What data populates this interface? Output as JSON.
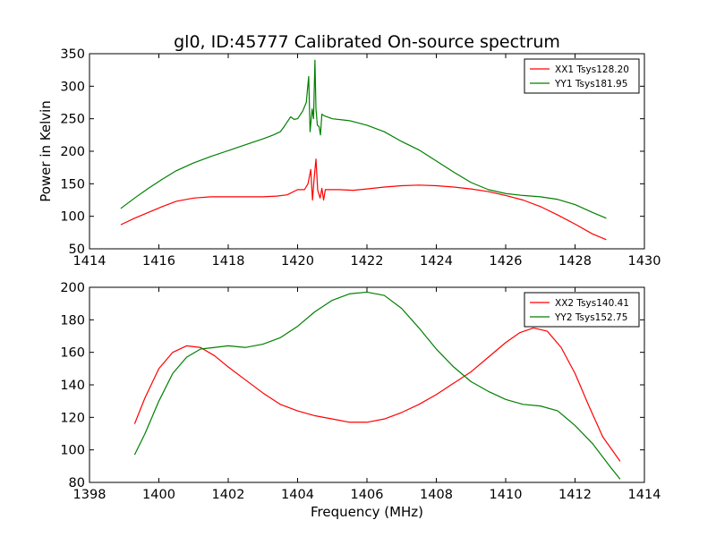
{
  "chart_data": [
    {
      "type": "line",
      "title": "gl0, ID:45777 Calibrated On-source spectrum",
      "xlabel": "",
      "ylabel": "Power in Kelvin",
      "xlim": [
        1414,
        1430
      ],
      "ylim": [
        50,
        350
      ],
      "xticks": [
        "1414",
        "1416",
        "1418",
        "1420",
        "1422",
        "1424",
        "1426",
        "1428",
        "1430"
      ],
      "yticks": [
        "50",
        "100",
        "150",
        "200",
        "250",
        "300",
        "350"
      ],
      "grid": false,
      "legend_position": "top-right",
      "series": [
        {
          "name": "XX1 Tsys128.20",
          "color": "#ff0000",
          "x": [
            1414.9,
            1415.3,
            1415.7,
            1416.1,
            1416.5,
            1417.0,
            1417.5,
            1418.0,
            1418.5,
            1419.0,
            1419.4,
            1419.7,
            1420.0,
            1420.2,
            1420.3,
            1420.38,
            1420.43,
            1420.48,
            1420.53,
            1420.58,
            1420.65,
            1420.7,
            1420.75,
            1420.8,
            1420.9,
            1421.2,
            1421.6,
            1422.0,
            1422.5,
            1423.0,
            1423.5,
            1424.0,
            1424.5,
            1425.0,
            1425.5,
            1426.0,
            1426.5,
            1427.0,
            1427.5,
            1428.0,
            1428.5,
            1428.9
          ],
          "y": [
            87,
            97,
            106,
            115,
            123,
            128,
            130,
            130,
            130,
            130,
            131,
            133,
            141,
            141,
            150,
            172,
            125,
            160,
            188,
            140,
            128,
            143,
            125,
            141,
            141,
            141,
            140,
            142,
            145,
            147,
            148,
            147,
            145,
            142,
            138,
            132,
            125,
            115,
            102,
            88,
            73,
            64
          ]
        },
        {
          "name": "YY1 Tsys181.95",
          "color": "#008000",
          "x": [
            1414.9,
            1415.3,
            1415.7,
            1416.1,
            1416.5,
            1417.0,
            1417.5,
            1418.0,
            1418.5,
            1419.0,
            1419.3,
            1419.5,
            1419.6,
            1419.7,
            1419.8,
            1419.9,
            1420.0,
            1420.15,
            1420.25,
            1420.32,
            1420.36,
            1420.42,
            1420.46,
            1420.5,
            1420.53,
            1420.57,
            1420.62,
            1420.66,
            1420.7,
            1420.75,
            1421.0,
            1421.5,
            1422.0,
            1422.5,
            1423.0,
            1423.5,
            1424.0,
            1424.5,
            1425.0,
            1425.5,
            1426.0,
            1426.5,
            1427.0,
            1427.5,
            1428.0,
            1428.5,
            1428.9
          ],
          "y": [
            112,
            128,
            143,
            157,
            170,
            182,
            192,
            201,
            210,
            219,
            225,
            230,
            237,
            245,
            253,
            249,
            250,
            262,
            275,
            315,
            230,
            265,
            250,
            340,
            265,
            240,
            238,
            225,
            257,
            255,
            250,
            247,
            240,
            230,
            215,
            202,
            185,
            168,
            152,
            141,
            135,
            132,
            130,
            126,
            118,
            106,
            97
          ]
        }
      ]
    },
    {
      "type": "line",
      "title": "",
      "xlabel": "Frequency (MHz)",
      "ylabel": "",
      "xlim": [
        1398,
        1414
      ],
      "ylim": [
        80,
        200
      ],
      "xticks": [
        "1398",
        "1400",
        "1402",
        "1404",
        "1406",
        "1408",
        "1410",
        "1412",
        "1414"
      ],
      "yticks": [
        "80",
        "100",
        "120",
        "140",
        "160",
        "180",
        "200"
      ],
      "grid": false,
      "legend_position": "top-right",
      "series": [
        {
          "name": "XX2 Tsys140.41",
          "color": "#ff0000",
          "x": [
            1399.3,
            1399.6,
            1400.0,
            1400.4,
            1400.8,
            1401.2,
            1401.6,
            1402.0,
            1402.5,
            1403.0,
            1403.5,
            1404.0,
            1404.5,
            1405.0,
            1405.5,
            1406.0,
            1406.5,
            1407.0,
            1407.5,
            1408.0,
            1408.5,
            1409.0,
            1409.5,
            1410.0,
            1410.4,
            1410.8,
            1411.2,
            1411.6,
            1412.0,
            1412.4,
            1412.8,
            1413.3
          ],
          "y": [
            116,
            132,
            150,
            160,
            164,
            163,
            158,
            151,
            143,
            135,
            128,
            124,
            121,
            119,
            117,
            117,
            119,
            123,
            128,
            134,
            141,
            148,
            157,
            166,
            172,
            175,
            173,
            163,
            147,
            127,
            108,
            93
          ]
        },
        {
          "name": "YY2 Tsys152.75",
          "color": "#008000",
          "x": [
            1399.3,
            1399.6,
            1400.0,
            1400.4,
            1400.8,
            1401.2,
            1401.6,
            1402.0,
            1402.5,
            1403.0,
            1403.5,
            1404.0,
            1404.5,
            1405.0,
            1405.5,
            1406.0,
            1406.5,
            1407.0,
            1407.5,
            1408.0,
            1408.5,
            1409.0,
            1409.5,
            1410.0,
            1410.5,
            1411.0,
            1411.5,
            1412.0,
            1412.5,
            1413.0,
            1413.3
          ],
          "y": [
            97,
            110,
            130,
            147,
            157,
            162,
            163,
            164,
            163,
            165,
            169,
            176,
            185,
            192,
            196,
            197,
            195,
            187,
            175,
            162,
            151,
            142,
            136,
            131,
            128,
            127,
            124,
            115,
            104,
            90,
            82
          ]
        }
      ]
    }
  ]
}
